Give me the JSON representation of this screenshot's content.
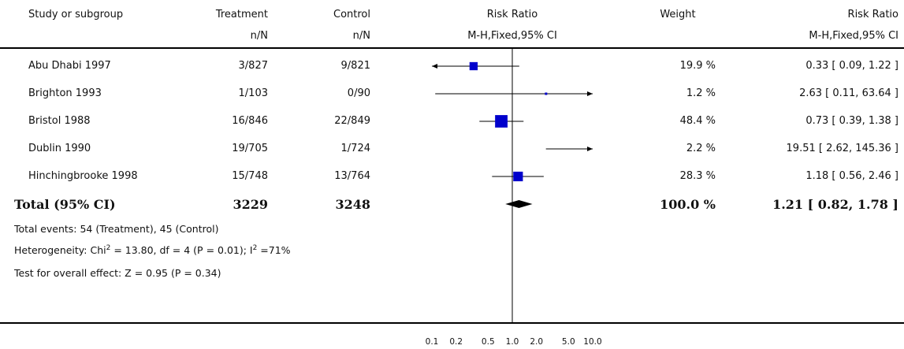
{
  "header": {
    "study": "Study or subgroup",
    "treatment": "Treatment",
    "treatment_sub": "n/N",
    "control": "Control",
    "control_sub": "n/N",
    "rr_plot": "Risk Ratio",
    "rr_plot_sub": "M-H,Fixed,95% CI",
    "weight": "Weight",
    "rr_text": "Risk Ratio",
    "rr_text_sub": "M-H,Fixed,95% CI"
  },
  "footer": {
    "events": "Total events: 54 (Treatment), 45 (Control)",
    "heterogeneity_pre": "Heterogeneity: Chi",
    "heterogeneity_sup1": "2",
    "heterogeneity_mid": " = 13.80, df = 4 (P = 0.01); I",
    "heterogeneity_sup2": "2",
    "heterogeneity_post": " =71%",
    "overall": "Test for overall effect: Z = 0.95 (P = 0.34)"
  },
  "chart_data": {
    "type": "forest",
    "x_scale": "log",
    "xlim": [
      0.1,
      10
    ],
    "x_ticks": [
      0.1,
      0.2,
      0.5,
      1.0,
      2.0,
      5.0,
      10.0
    ],
    "x_tick_labels": [
      "0.1",
      "0.2",
      "0.5",
      "1.0",
      "2.0",
      "5.0",
      "10.0"
    ],
    "studies": [
      {
        "name": "Abu Dhabi 1997",
        "treatment": "3/827",
        "control": "9/821",
        "weight": "19.9 %",
        "rr_text": "0.33 [ 0.09, 1.22 ]",
        "rr": 0.33,
        "lo": 0.09,
        "hi": 1.22,
        "w": 19.9
      },
      {
        "name": "Brighton 1993",
        "treatment": "1/103",
        "control": "0/90",
        "weight": "1.2 %",
        "rr_text": "2.63 [ 0.11, 63.64 ]",
        "rr": 2.63,
        "lo": 0.11,
        "hi": 63.64,
        "w": 1.2
      },
      {
        "name": "Bristol 1988",
        "treatment": "16/846",
        "control": "22/849",
        "weight": "48.4 %",
        "rr_text": "0.73 [ 0.39, 1.38 ]",
        "rr": 0.73,
        "lo": 0.39,
        "hi": 1.38,
        "w": 48.4
      },
      {
        "name": "Dublin 1990",
        "treatment": "19/705",
        "control": "1/724",
        "weight": "2.2 %",
        "rr_text": "19.51 [ 2.62, 145.36 ]",
        "rr": 19.51,
        "lo": 2.62,
        "hi": 145.36,
        "w": 2.2
      },
      {
        "name": "Hinchingbrooke 1998",
        "treatment": "15/748",
        "control": "13/764",
        "weight": "28.3 %",
        "rr_text": "1.18 [ 0.56, 2.46 ]",
        "rr": 1.18,
        "lo": 0.56,
        "hi": 2.46,
        "w": 28.3
      }
    ],
    "total": {
      "name": "Total (95% CI)",
      "treatment": "3229",
      "control": "3248",
      "weight": "100.0 %",
      "rr_text": "1.21 [ 0.82, 1.78 ]",
      "rr": 1.21,
      "lo": 0.82,
      "hi": 1.78
    },
    "colors": {
      "box": "#0000cc",
      "line": "#000000"
    }
  }
}
